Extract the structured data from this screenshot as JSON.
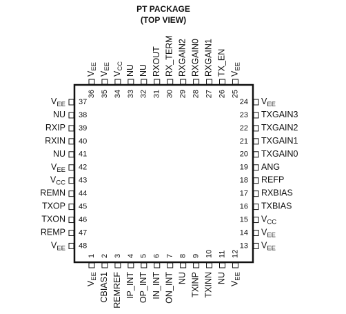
{
  "title": "PT PACKAGE",
  "subtitle": "(TOP VIEW)",
  "pins": {
    "left": [
      {
        "number": "37",
        "label": "V",
        "sub": "EE"
      },
      {
        "number": "38",
        "label": "NU"
      },
      {
        "number": "39",
        "label": "RXIP"
      },
      {
        "number": "40",
        "label": "RXIN"
      },
      {
        "number": "41",
        "label": "NU"
      },
      {
        "number": "42",
        "label": "V",
        "sub": "EE"
      },
      {
        "number": "43",
        "label": "V",
        "sub": "CC"
      },
      {
        "number": "44",
        "label": "REMN"
      },
      {
        "number": "45",
        "label": "TXOP"
      },
      {
        "number": "46",
        "label": "TXON"
      },
      {
        "number": "47",
        "label": "REMP"
      },
      {
        "number": "48",
        "label": "V",
        "sub": "EE"
      }
    ],
    "right": [
      {
        "number": "24",
        "label": "V",
        "sub": "EE"
      },
      {
        "number": "23",
        "label": "TXGAIN3"
      },
      {
        "number": "22",
        "label": "TXGAIN2"
      },
      {
        "number": "21",
        "label": "TXGAIN1"
      },
      {
        "number": "20",
        "label": "TXGAIN0"
      },
      {
        "number": "19",
        "label": "ANG"
      },
      {
        "number": "18",
        "label": "REFP"
      },
      {
        "number": "17",
        "label": "RXBIAS"
      },
      {
        "number": "16",
        "label": "TXBIAS"
      },
      {
        "number": "15",
        "label": "V",
        "sub": "CC"
      },
      {
        "number": "14",
        "label": "V",
        "sub": "EE"
      },
      {
        "number": "13",
        "label": "V",
        "sub": "EE"
      }
    ],
    "top": [
      {
        "number": "36",
        "label": "V",
        "sub": "EE"
      },
      {
        "number": "35",
        "label": "V",
        "sub": "EE"
      },
      {
        "number": "34",
        "label": "V",
        "sub": "CC"
      },
      {
        "number": "33",
        "label": "NU"
      },
      {
        "number": "32",
        "label": "NU"
      },
      {
        "number": "31",
        "label": "RXOUT"
      },
      {
        "number": "30",
        "label": "RX_TERM"
      },
      {
        "number": "29",
        "label": "RXGAIN2"
      },
      {
        "number": "28",
        "label": "RXGAIN0"
      },
      {
        "number": "27",
        "label": "RXGAIN1"
      },
      {
        "number": "26",
        "label": "TX_EN"
      },
      {
        "number": "25",
        "label": "V",
        "sub": "EE"
      }
    ],
    "bottom": [
      {
        "number": "1",
        "label": "V",
        "sub": "EE"
      },
      {
        "number": "2",
        "label": "CBIAS1"
      },
      {
        "number": "3",
        "label": "REMREF"
      },
      {
        "number": "4",
        "label": "IP_INT"
      },
      {
        "number": "5",
        "label": "OP_INT"
      },
      {
        "number": "6",
        "label": "IN_INT"
      },
      {
        "number": "7",
        "label": "ON_INT"
      },
      {
        "number": "8",
        "label": "NU"
      },
      {
        "number": "9",
        "label": "TXINP"
      },
      {
        "number": "10",
        "label": "TXINN"
      },
      {
        "number": "11",
        "label": "NU"
      },
      {
        "number": "12",
        "label": "V",
        "sub": "EE"
      }
    ]
  }
}
